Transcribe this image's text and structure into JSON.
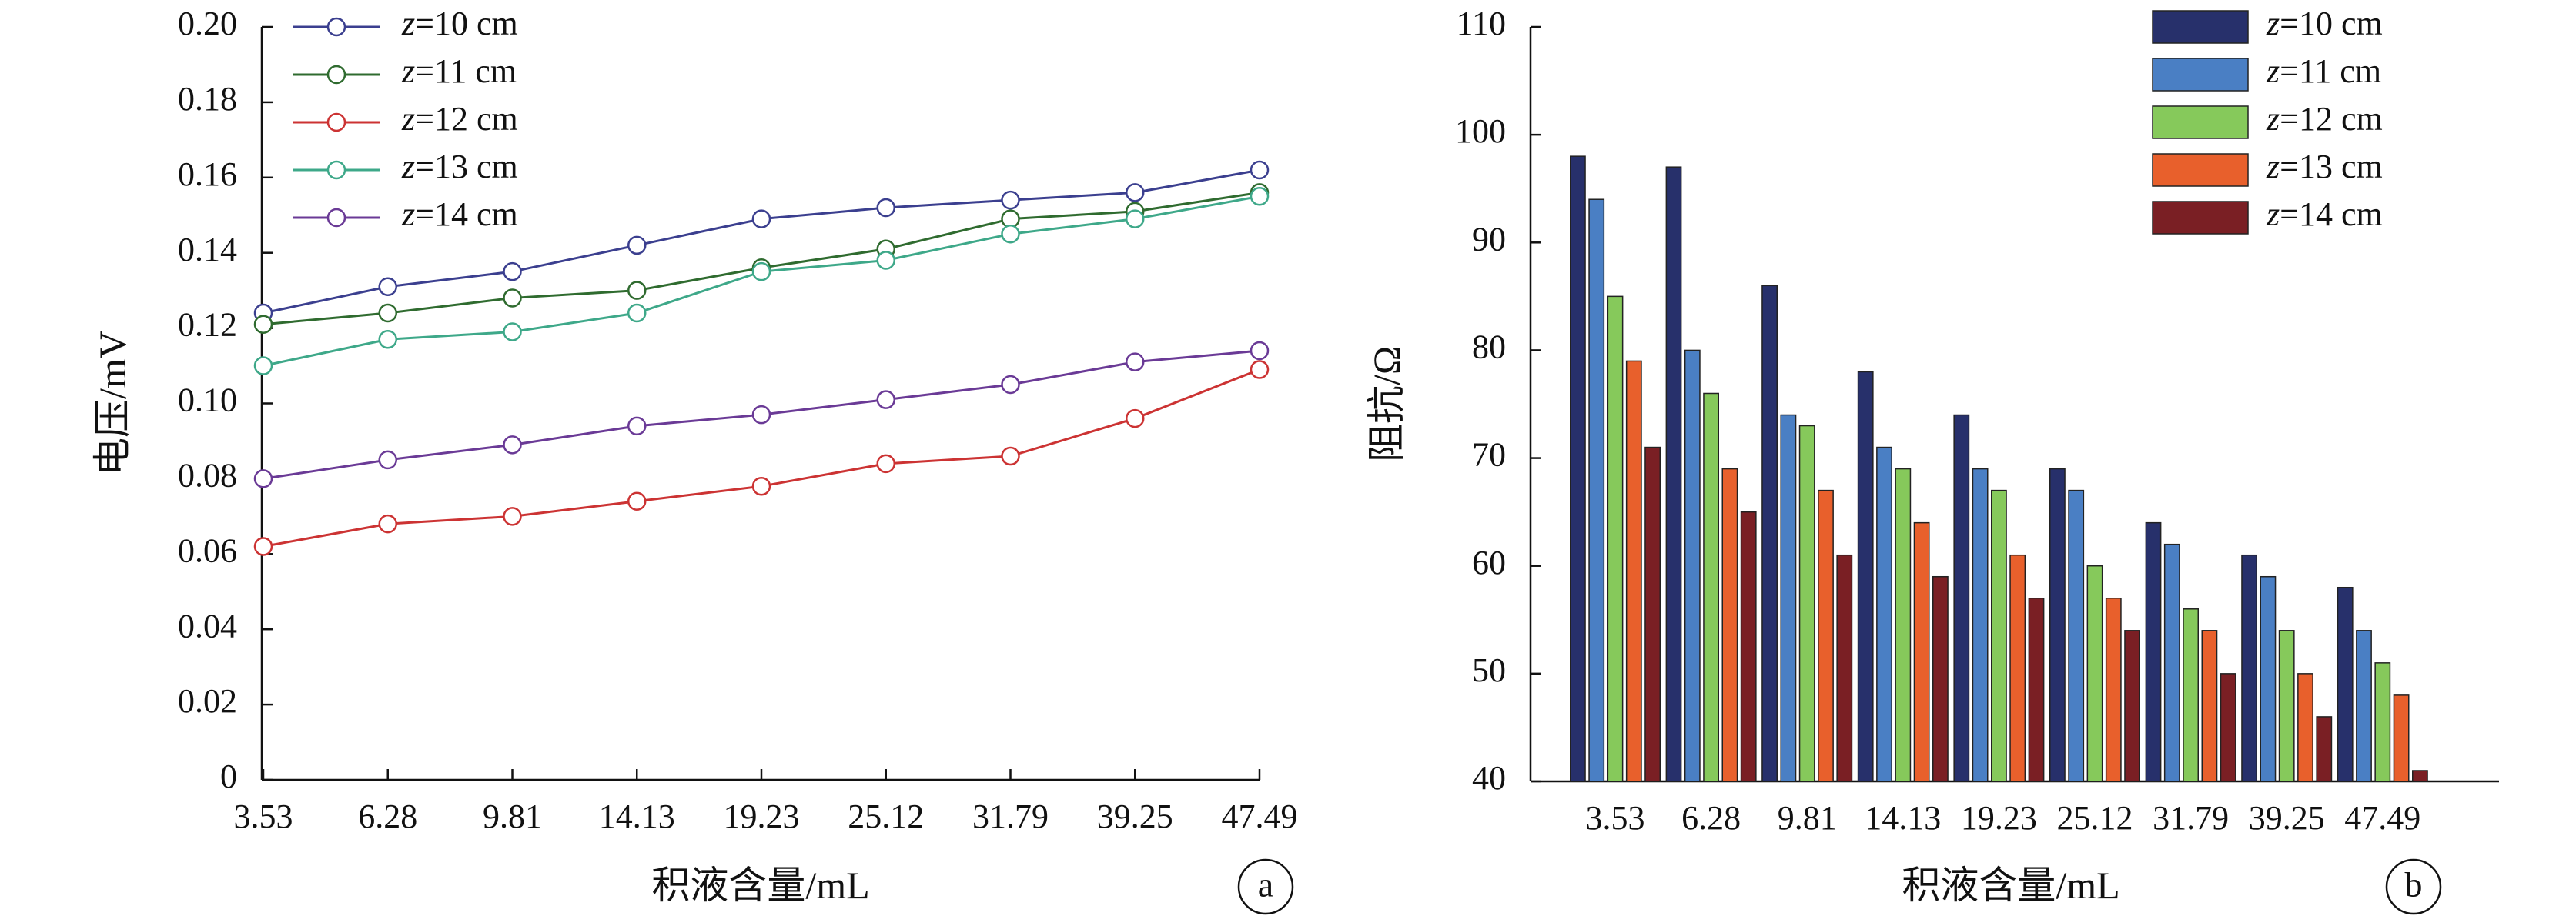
{
  "chart_data": [
    {
      "type": "line",
      "panel_label": "a",
      "xlabel": "积液含量/mL",
      "ylabel": "电压/mV",
      "categories": [
        "3.53",
        "6.28",
        "9.81",
        "14.13",
        "19.23",
        "25.12",
        "31.79",
        "39.25",
        "47.49"
      ],
      "ylim": [
        0,
        0.2
      ],
      "yticks": [
        "0",
        "0.02",
        "0.04",
        "0.06",
        "0.08",
        "0.10",
        "0.12",
        "0.14",
        "0.16",
        "0.18",
        "0.20"
      ],
      "legend_position": "top-left",
      "series": [
        {
          "name": "z=10 cm",
          "var": "z",
          "suffix": "=10 cm",
          "color": "#3b3f8f",
          "values": [
            0.124,
            0.131,
            0.135,
            0.142,
            0.149,
            0.152,
            0.154,
            0.156,
            0.162
          ]
        },
        {
          "name": "z=11 cm",
          "var": "z",
          "suffix": "=11 cm",
          "color": "#2f6b2f",
          "values": [
            0.121,
            0.124,
            0.128,
            0.13,
            0.136,
            0.141,
            0.149,
            0.151,
            0.156
          ]
        },
        {
          "name": "z=12 cm",
          "var": "z",
          "suffix": "=12 cm",
          "color": "#cc3333",
          "values": [
            0.062,
            0.068,
            0.07,
            0.074,
            0.078,
            0.084,
            0.086,
            0.096,
            0.109
          ]
        },
        {
          "name": "z=13 cm",
          "var": "z",
          "suffix": "=13 cm",
          "color": "#3ea889",
          "values": [
            0.11,
            0.117,
            0.119,
            0.124,
            0.135,
            0.138,
            0.145,
            0.149,
            0.155
          ]
        },
        {
          "name": "z=14 cm",
          "var": "z",
          "suffix": "=14 cm",
          "color": "#6a3a96",
          "values": [
            0.08,
            0.085,
            0.089,
            0.094,
            0.097,
            0.101,
            0.105,
            0.111,
            0.114
          ]
        }
      ]
    },
    {
      "type": "bar",
      "panel_label": "b",
      "xlabel": "积液含量/mL",
      "ylabel": "阻抗/Ω",
      "categories": [
        "3.53",
        "6.28",
        "9.81",
        "14.13",
        "19.23",
        "25.12",
        "31.79",
        "39.25",
        "47.49"
      ],
      "ylim": [
        40,
        110
      ],
      "yticks": [
        "40",
        "50",
        "60",
        "70",
        "80",
        "90",
        "100",
        "110"
      ],
      "legend_position": "top-right",
      "series": [
        {
          "name": "z=10 cm",
          "var": "z",
          "suffix": "=10 cm",
          "color": "#27306b",
          "values": [
            98,
            97,
            86,
            78,
            74,
            69,
            64,
            61,
            58
          ]
        },
        {
          "name": "z=11 cm",
          "var": "z",
          "suffix": "=11 cm",
          "color": "#4a7fc4",
          "values": [
            94,
            80,
            74,
            71,
            69,
            67,
            62,
            59,
            54
          ]
        },
        {
          "name": "z=12 cm",
          "var": "z",
          "suffix": "=12 cm",
          "color": "#86c95b",
          "values": [
            85,
            76,
            73,
            69,
            67,
            60,
            56,
            54,
            51
          ]
        },
        {
          "name": "z=13 cm",
          "var": "z",
          "suffix": "=13 cm",
          "color": "#e8602c",
          "values": [
            79,
            69,
            67,
            64,
            61,
            57,
            54,
            50,
            48
          ]
        },
        {
          "name": "z=14 cm",
          "var": "z",
          "suffix": "=14 cm",
          "color": "#7a1f24",
          "values": [
            71,
            65,
            61,
            59,
            57,
            54,
            50,
            46,
            41
          ]
        }
      ]
    }
  ]
}
